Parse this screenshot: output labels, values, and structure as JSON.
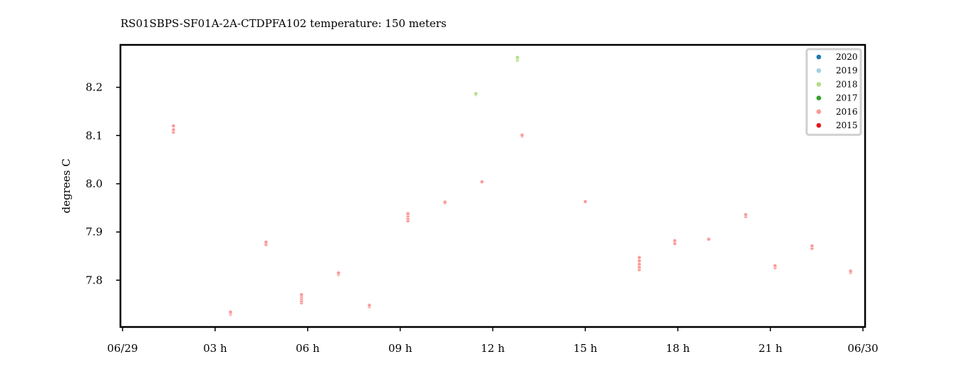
{
  "chart_data": {
    "type": "scatter",
    "title": "RS01SBPS-SF01A-2A-CTDPFA102 temperature: 150 meters",
    "xlabel": "",
    "ylabel": "degrees C",
    "x_unit": "hours",
    "xlim": [
      0,
      24
    ],
    "ylim": [
      7.703,
      8.288
    ],
    "x_ticks": [
      {
        "value": 0,
        "label": "06/29"
      },
      {
        "value": 3,
        "label": "03 h"
      },
      {
        "value": 6,
        "label": "06 h"
      },
      {
        "value": 9,
        "label": "09 h"
      },
      {
        "value": 12,
        "label": "12 h"
      },
      {
        "value": 15,
        "label": "15 h"
      },
      {
        "value": 18,
        "label": "18 h"
      },
      {
        "value": 21,
        "label": "21 h"
      },
      {
        "value": 24,
        "label": "06/30"
      }
    ],
    "y_ticks": [
      {
        "value": 7.8,
        "label": "7.8"
      },
      {
        "value": 7.9,
        "label": "7.9"
      },
      {
        "value": 8.0,
        "label": "8.0"
      },
      {
        "value": 8.1,
        "label": "8.1"
      },
      {
        "value": 8.2,
        "label": "8.2"
      }
    ],
    "grid": false,
    "legend_position": "top-right",
    "series": [
      {
        "name": "2020",
        "color": "#1f78b4",
        "points": []
      },
      {
        "name": "2019",
        "color": "#a6cee3",
        "points": []
      },
      {
        "name": "2018",
        "color": "#b2df8a",
        "points": [
          [
            11.45,
            8.185
          ],
          [
            11.45,
            8.187
          ],
          [
            12.8,
            8.256
          ],
          [
            12.8,
            8.259
          ],
          [
            12.8,
            8.262
          ]
        ]
      },
      {
        "name": "2017",
        "color": "#33a02c",
        "points": []
      },
      {
        "name": "2016",
        "color": "#fb9a99",
        "points": [
          [
            1.65,
            8.107
          ],
          [
            1.65,
            8.112
          ],
          [
            1.65,
            8.12
          ],
          [
            3.5,
            7.729
          ],
          [
            3.5,
            7.731
          ],
          [
            3.5,
            7.734
          ],
          [
            4.65,
            7.874
          ],
          [
            4.65,
            7.879
          ],
          [
            5.8,
            7.753
          ],
          [
            5.8,
            7.757
          ],
          [
            5.8,
            7.762
          ],
          [
            5.8,
            7.766
          ],
          [
            5.8,
            7.77
          ],
          [
            7.0,
            7.812
          ],
          [
            7.0,
            7.815
          ],
          [
            8.0,
            7.745
          ],
          [
            8.0,
            7.748
          ],
          [
            9.25,
            7.923
          ],
          [
            9.25,
            7.928
          ],
          [
            9.25,
            7.933
          ],
          [
            9.25,
            7.938
          ],
          [
            10.45,
            7.96
          ],
          [
            10.45,
            7.962
          ],
          [
            11.65,
            8.004
          ],
          [
            12.95,
            8.099
          ],
          [
            12.95,
            8.101
          ],
          [
            15.0,
            7.963
          ],
          [
            16.75,
            7.822
          ],
          [
            16.75,
            7.827
          ],
          [
            16.75,
            7.833
          ],
          [
            16.75,
            7.84
          ],
          [
            16.75,
            7.847
          ],
          [
            17.9,
            7.876
          ],
          [
            17.9,
            7.882
          ],
          [
            19.0,
            7.885
          ],
          [
            20.2,
            7.932
          ],
          [
            20.2,
            7.936
          ],
          [
            21.15,
            7.826
          ],
          [
            21.15,
            7.83
          ],
          [
            22.35,
            7.866
          ],
          [
            22.35,
            7.871
          ],
          [
            23.6,
            7.816
          ],
          [
            23.6,
            7.819
          ]
        ]
      },
      {
        "name": "2015",
        "color": "#e31a1c",
        "points": []
      }
    ]
  }
}
